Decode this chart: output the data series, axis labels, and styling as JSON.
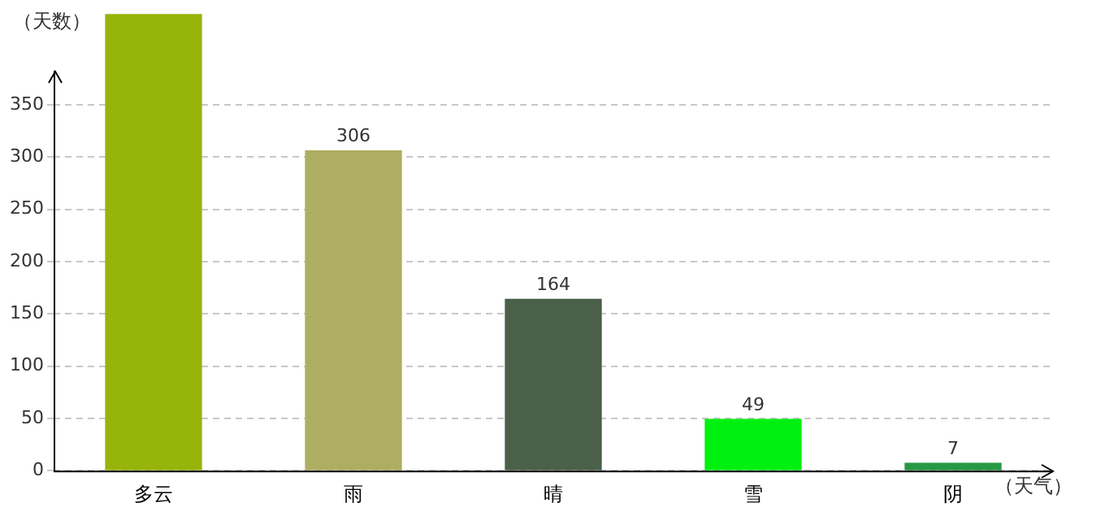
{
  "chart_data": {
    "type": "bar",
    "xlabel": "（天气）",
    "ylabel": "（天数）",
    "categories": [
      "多云",
      "雨",
      "晴",
      "雪",
      "阴"
    ],
    "values": [
      437,
      306,
      164,
      49,
      7
    ],
    "value_labels": [
      null,
      "306",
      "164",
      "49",
      "7"
    ],
    "colors": [
      "#97b40b",
      "#adae62",
      "#4a6049",
      "#00f010",
      "#279943"
    ],
    "ylim": [
      0,
      437
    ],
    "yticks": [
      0,
      50,
      100,
      150,
      200,
      250,
      300,
      350
    ],
    "grid": "y",
    "legend": false
  }
}
